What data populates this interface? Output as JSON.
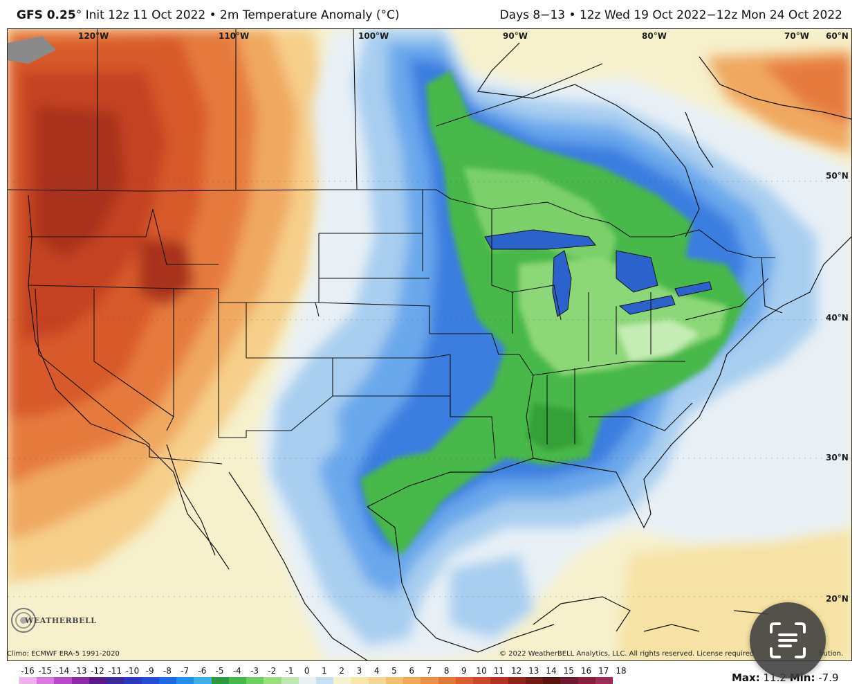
{
  "header": {
    "model": "GFS 0.25",
    "init_text": "° Init 12z 11 Oct 2022 • 2m Temperature Anomaly (°C)",
    "valid_text": "Days 8−13 • 12z Wed 19 Oct 2022−12z Mon 24 Oct 2022"
  },
  "map": {
    "longitude_labels": [
      "120°W",
      "110°W",
      "100°W",
      "90°W",
      "80°W",
      "70°W"
    ],
    "latitude_labels": [
      "60°N",
      "50°N",
      "40°N",
      "30°N",
      "20°N"
    ]
  },
  "logo": {
    "text": "WEATHERBELL"
  },
  "footer": {
    "climo": "Climo: ECMWF ERA-5 1991-2020",
    "copyright": "© 2022 WeatherBELL Analytics, LLC. All rights reserved. License required",
    "copyright_tail": "bution.",
    "max_label": "Max:",
    "max_value": "11.2",
    "min_label": "Min:",
    "min_value": "-7.9"
  },
  "colorbar": {
    "labels": [
      "-16",
      "-15",
      "-14",
      "-13",
      "-12",
      "-11",
      "-10",
      "-9",
      "-8",
      "-7",
      "-6",
      "-5",
      "-4",
      "-3",
      "-2",
      "-1",
      "0",
      "1",
      "2",
      "3",
      "4",
      "5",
      "6",
      "7",
      "8",
      "9",
      "10",
      "11",
      "12",
      "13",
      "14",
      "15",
      "16",
      "17",
      "18"
    ],
    "colors": [
      "#f0b0f0",
      "#d878e0",
      "#b848c8",
      "#8c2aa8",
      "#5a1a88",
      "#3a2a9a",
      "#2a3ab8",
      "#2250d0",
      "#1e6ae0",
      "#2290e8",
      "#40b0e8",
      "#2e9a40",
      "#46b848",
      "#6cd060",
      "#98e07c",
      "#c0e8b0",
      "#e8f0f4",
      "#c8e0f4",
      "#f6f2d0",
      "#f8e8a8",
      "#f8d890",
      "#f4c070",
      "#f0a858",
      "#ec9048",
      "#e47838",
      "#d86030",
      "#c84828",
      "#b03420",
      "#902418",
      "#741a14",
      "#5a1410",
      "#701830",
      "#8a2040",
      "#a02c58"
    ]
  },
  "scan_button": {
    "icon": "text-scan-icon"
  }
}
